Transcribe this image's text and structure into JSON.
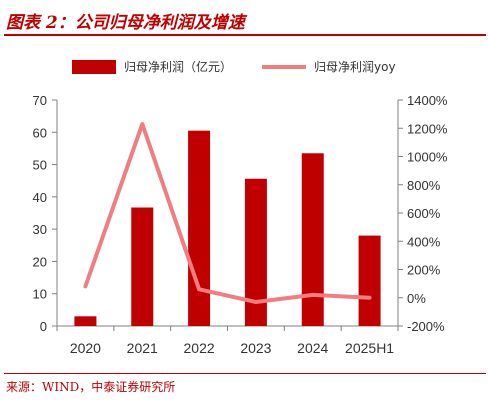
{
  "header": {
    "title": "图表 2：公司归母净利润及增速"
  },
  "footer": {
    "source": "来源：WIND，中泰证券研究所"
  },
  "colors": {
    "accent": "#c00000",
    "bar": "#c00000",
    "line": "#f07d80",
    "axis": "#808080",
    "text": "#333333"
  },
  "chart_data": {
    "type": "bar",
    "title": "图表 2：公司归母净利润及增速",
    "categories": [
      "2020",
      "2021",
      "2022",
      "2023",
      "2024",
      "2025H1"
    ],
    "series": [
      {
        "name": "归母净利润（亿元）",
        "type": "bar",
        "axis": "left",
        "values": [
          3,
          36.7,
          60.5,
          45.6,
          53.5,
          28
        ]
      },
      {
        "name": "归母净利润yoy",
        "type": "line",
        "axis": "right",
        "values": [
          80,
          1230,
          60,
          -30,
          20,
          0
        ]
      }
    ],
    "ylim_left": [
      0,
      70
    ],
    "yticks_left": [
      "0",
      "10",
      "20",
      "30",
      "40",
      "50",
      "60",
      "70"
    ],
    "ylim_right": [
      -200,
      1400
    ],
    "yticks_right": [
      "-200%",
      "0%",
      "200%",
      "400%",
      "600%",
      "800%",
      "1000%",
      "1200%",
      "1400%"
    ],
    "legend_position": "top",
    "grid": false
  }
}
